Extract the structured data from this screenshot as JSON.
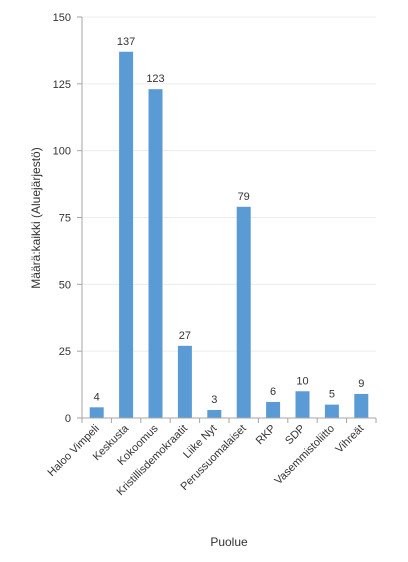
{
  "chart_data": {
    "type": "bar",
    "categories": [
      "Haloo Vimpeli",
      "Keskusta",
      "Kokoomus",
      "Kristillisdemokraatit",
      "Liike Nyt",
      "Perussuomalaiset",
      "RKP",
      "SDP",
      "Vasemmistoliitto",
      "Vihreät"
    ],
    "values": [
      4,
      137,
      123,
      27,
      3,
      79,
      6,
      10,
      5,
      9
    ],
    "xlabel": "Puolue",
    "ylabel": "Määrä:kaikki (Aluejärjestö)",
    "ylim": [
      0,
      150
    ],
    "yticks": [
      0,
      25,
      50,
      75,
      100,
      125,
      150
    ],
    "grid": true,
    "data_labels": true,
    "bar_color": "#5b9bd5"
  }
}
